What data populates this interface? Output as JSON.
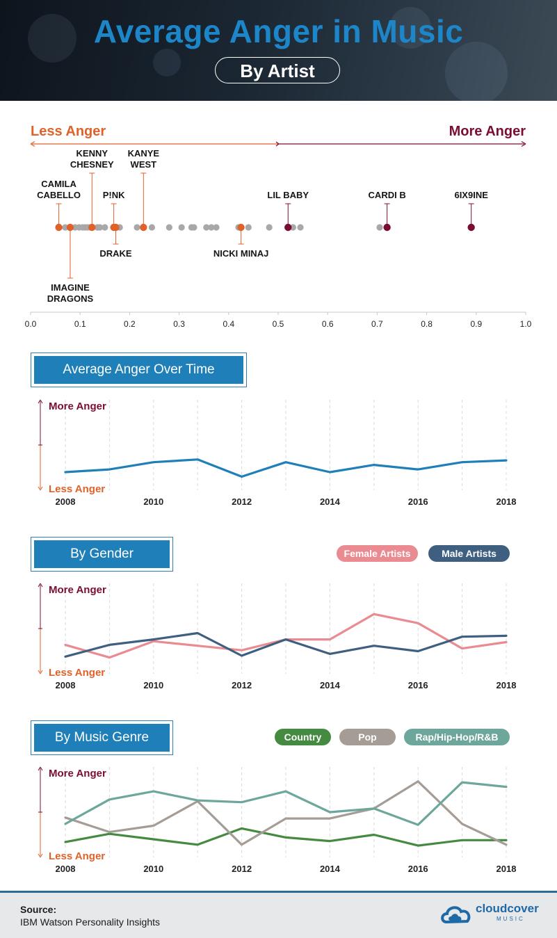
{
  "header": {
    "title": "Average Anger in Music",
    "subtitle": "By Artist"
  },
  "colors": {
    "less_anger": "#e0622b",
    "more_anger": "#7b0d33",
    "line_blue": "#1e7fb9",
    "grey_dot": "#a8a8a8",
    "female": "#ea8a91",
    "male": "#3f5f80",
    "country": "#448a40",
    "pop": "#a59c96",
    "rap": "#6da69a"
  },
  "chart_data": [
    {
      "type": "scatter",
      "title": "By Artist",
      "scale_labels": {
        "left": "Less Anger",
        "right": "More Anger"
      },
      "xlim": [
        0.0,
        1.0
      ],
      "x_ticks": [
        "0.0",
        "0.1",
        "0.2",
        "0.3",
        "0.4",
        "0.5",
        "0.6",
        "0.7",
        "0.8",
        "0.9",
        "1.0"
      ],
      "other_artists": [
        0.07,
        0.09,
        0.098,
        0.105,
        0.11,
        0.115,
        0.12,
        0.125,
        0.135,
        0.14,
        0.15,
        0.18,
        0.215,
        0.245,
        0.28,
        0.305,
        0.325,
        0.33,
        0.355,
        0.365,
        0.375,
        0.42,
        0.44,
        0.482,
        0.53,
        0.545,
        0.705
      ],
      "labeled_artists": [
        {
          "name": "CAMILA CABELLO",
          "lines": [
            "CAMILA",
            "CABELLO"
          ],
          "value": 0.057,
          "level": "less",
          "pos": "above-low"
        },
        {
          "name": "IMAGINE DRAGONS",
          "lines": [
            "IMAGINE",
            "DRAGONS"
          ],
          "value": 0.08,
          "level": "less",
          "pos": "below-far"
        },
        {
          "name": "KENNY CHESNEY",
          "lines": [
            "KENNY",
            "CHESNEY"
          ],
          "value": 0.124,
          "level": "less",
          "pos": "above-high"
        },
        {
          "name": "P!NK",
          "lines": [
            "P!NK"
          ],
          "value": 0.168,
          "level": "less",
          "pos": "above-low"
        },
        {
          "name": "DRAKE",
          "lines": [
            "DRAKE"
          ],
          "value": 0.172,
          "level": "less",
          "pos": "below-near"
        },
        {
          "name": "KANYE WEST",
          "lines": [
            "KANYE",
            "WEST"
          ],
          "value": 0.228,
          "level": "less",
          "pos": "above-high"
        },
        {
          "name": "NICKI MINAJ",
          "lines": [
            "NICKI MINAJ"
          ],
          "value": 0.425,
          "level": "less",
          "pos": "below-near"
        },
        {
          "name": "LIL BABY",
          "lines": [
            "LIL BABY"
          ],
          "value": 0.52,
          "level": "more",
          "pos": "above-low"
        },
        {
          "name": "CARDI B",
          "lines": [
            "CARDI B"
          ],
          "value": 0.72,
          "level": "more",
          "pos": "above-low"
        },
        {
          "name": "6IX9INE",
          "lines": [
            "6IX9INE"
          ],
          "value": 0.89,
          "level": "more",
          "pos": "above-low"
        }
      ]
    },
    {
      "type": "line",
      "title": "Average Anger Over Time",
      "ylabel_top": "More Anger",
      "ylabel_bottom": "Less Anger",
      "ylim": [
        0,
        1
      ],
      "x": [
        2008,
        2009,
        2010,
        2011,
        2012,
        2013,
        2014,
        2015,
        2016,
        2017,
        2018
      ],
      "x_ticks": [
        "2008",
        "2010",
        "2012",
        "2014",
        "2016",
        "2018"
      ],
      "series": [
        {
          "name": "Average",
          "color": "#1e7fb9",
          "values": [
            0.2,
            0.23,
            0.31,
            0.34,
            0.15,
            0.31,
            0.2,
            0.28,
            0.23,
            0.31,
            0.33
          ]
        }
      ]
    },
    {
      "type": "line",
      "title": "By Gender",
      "ylabel_top": "More Anger",
      "ylabel_bottom": "Less Anger",
      "ylim": [
        0,
        1
      ],
      "x": [
        2008,
        2009,
        2010,
        2011,
        2012,
        2013,
        2014,
        2015,
        2016,
        2017,
        2018
      ],
      "x_ticks": [
        "2008",
        "2010",
        "2012",
        "2014",
        "2016",
        "2018"
      ],
      "legend": [
        "Female Artists",
        "Male Artists"
      ],
      "series": [
        {
          "name": "Female Artists",
          "color": "#ea8a91",
          "values": [
            0.32,
            0.18,
            0.36,
            0.31,
            0.26,
            0.38,
            0.38,
            0.66,
            0.56,
            0.28,
            0.35
          ]
        },
        {
          "name": "Male Artists",
          "color": "#3f5f80",
          "values": [
            0.19,
            0.32,
            0.38,
            0.45,
            0.2,
            0.38,
            0.22,
            0.31,
            0.25,
            0.41,
            0.42
          ]
        }
      ]
    },
    {
      "type": "line",
      "title": "By Music Genre",
      "ylabel_top": "More Anger",
      "ylabel_bottom": "Less Anger",
      "ylim": [
        0,
        1
      ],
      "x": [
        2008,
        2009,
        2010,
        2011,
        2012,
        2013,
        2014,
        2015,
        2016,
        2017,
        2018
      ],
      "x_ticks": [
        "2008",
        "2010",
        "2012",
        "2014",
        "2016",
        "2018"
      ],
      "legend": [
        "Country",
        "Pop",
        "Rap/Hip-Hop/R&B"
      ],
      "series": [
        {
          "name": "Country",
          "color": "#448a40",
          "values": [
            0.17,
            0.26,
            0.2,
            0.14,
            0.32,
            0.22,
            0.18,
            0.25,
            0.13,
            0.19,
            0.19
          ]
        },
        {
          "name": "Pop",
          "color": "#a59c96",
          "values": [
            0.44,
            0.28,
            0.35,
            0.62,
            0.14,
            0.43,
            0.43,
            0.54,
            0.84,
            0.37,
            0.14
          ]
        },
        {
          "name": "Rap/Hip-Hop/R&B",
          "color": "#6da69a",
          "values": [
            0.37,
            0.64,
            0.73,
            0.63,
            0.61,
            0.73,
            0.5,
            0.54,
            0.36,
            0.83,
            0.78
          ]
        }
      ]
    }
  ],
  "footer": {
    "source_label": "Source:",
    "source_text": "IBM Watson Personality Insights",
    "logo_text": "cloudcover",
    "logo_sub": "MUSIC"
  }
}
